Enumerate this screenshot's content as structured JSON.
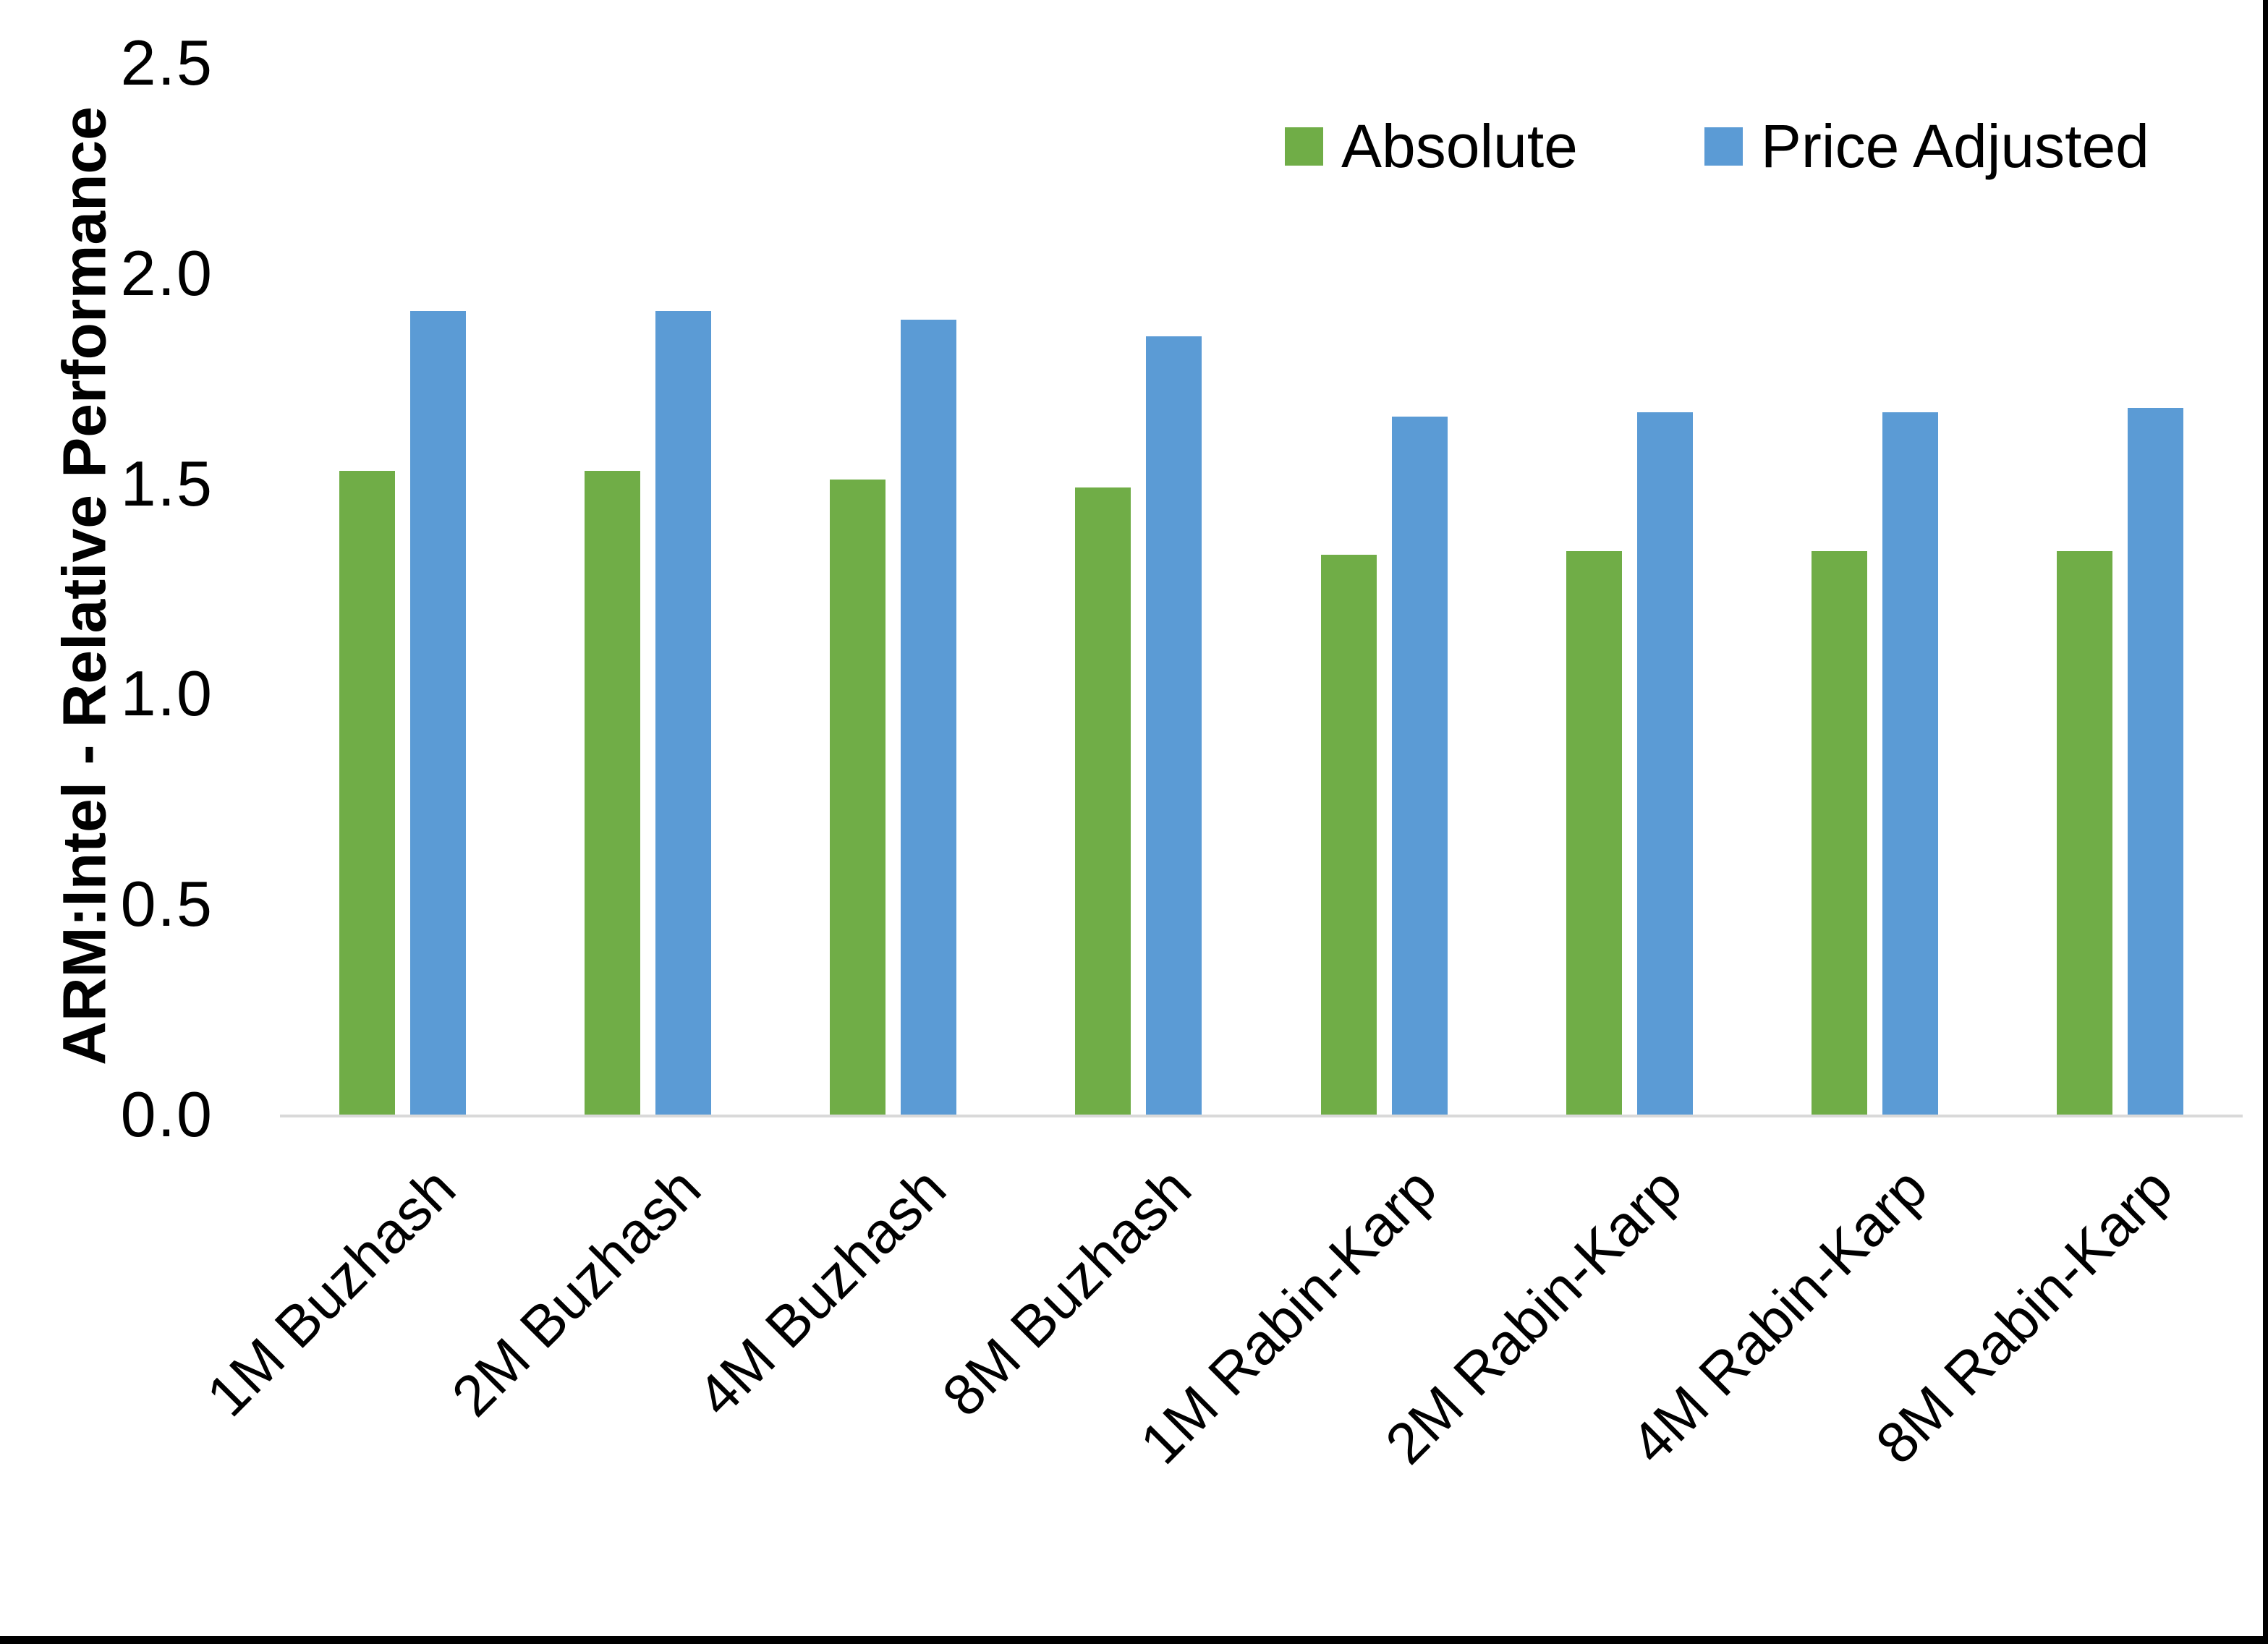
{
  "page": {
    "background": "#FFFFFF",
    "frame_color": "#000000",
    "axis_line_color": "#D9D9D9"
  },
  "legend": {
    "items": [
      {
        "label": "Absolute",
        "color": "#70AD47"
      },
      {
        "label": "Price Adjusted",
        "color": "#5B9BD5"
      }
    ]
  },
  "y_axis": {
    "title": "ARM:Intel - Relative Performance",
    "tick_labels": [
      "0.0",
      "0.5",
      "1.0",
      "1.5",
      "2.0",
      "2.5"
    ]
  },
  "chart_data": {
    "type": "bar",
    "title": "",
    "xlabel": "",
    "ylabel": "ARM:Intel - Relative Performance",
    "ylim": [
      0,
      2.5
    ],
    "ytick_step": 0.5,
    "grid": false,
    "legend_position": "top-right",
    "categories": [
      "1M Buzhash",
      "2M Buzhash",
      "4M Buzhash",
      "8M Buzhash",
      "1M Rabin-Karp",
      "2M Rabin-Karp",
      "4M Rabin-Karp",
      "8M Rabin-Karp"
    ],
    "series": [
      {
        "name": "Absolute",
        "color": "#70AD47",
        "values": [
          1.53,
          1.53,
          1.51,
          1.49,
          1.33,
          1.34,
          1.34,
          1.34
        ]
      },
      {
        "name": "Price Adjusted",
        "color": "#5B9BD5",
        "values": [
          1.91,
          1.91,
          1.89,
          1.85,
          1.66,
          1.67,
          1.67,
          1.68
        ]
      }
    ]
  }
}
